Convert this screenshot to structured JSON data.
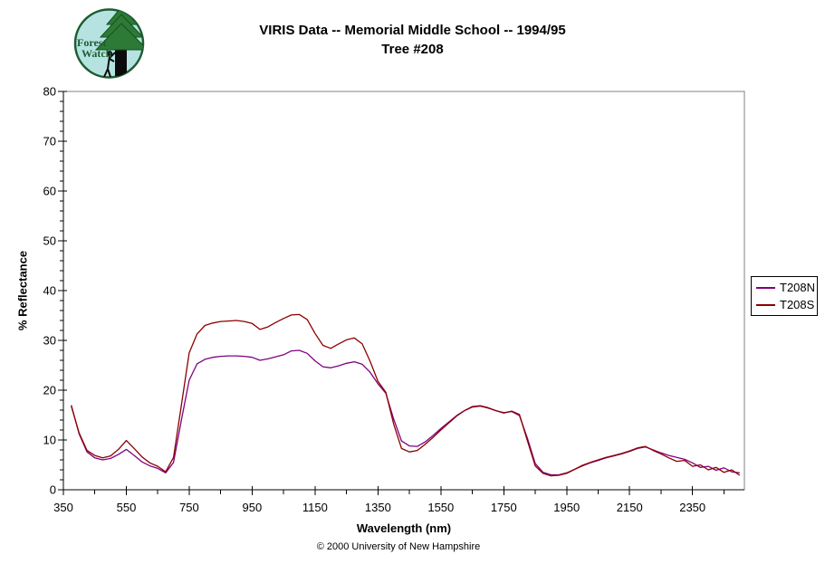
{
  "title": {
    "line1": "VIRIS Data -- Memorial Middle School -- 1994/95",
    "line2": "Tree #208"
  },
  "logo": {
    "line1": "Forest",
    "line2": "Watch"
  },
  "footer": {
    "copyright": "© 2000 University of New Hampshire"
  },
  "colors": {
    "series_n": "#800080",
    "series_s": "#8b0000",
    "plot_border": "#808080",
    "axis": "#000000",
    "logo_fill": "#b6e3e1",
    "logo_green": "#1d5c33"
  },
  "chart_data": {
    "type": "line",
    "title": "VIRIS Data -- Memorial Middle School -- 1994/95  Tree #208",
    "xlabel": "Wavelength (nm)",
    "ylabel": "% Reflectance",
    "xlim": [
      350,
      2515
    ],
    "ylim": [
      0,
      80
    ],
    "grid": false,
    "legend_position": "outside-right",
    "x_major_ticks": [
      350,
      550,
      750,
      950,
      1150,
      1350,
      1550,
      1750,
      1950,
      2150,
      2350
    ],
    "x_minor_step": 100,
    "y_major_ticks": [
      0,
      10,
      20,
      30,
      40,
      50,
      60,
      70,
      80
    ],
    "y_minor_step": 2,
    "x": [
      375,
      400,
      425,
      450,
      475,
      500,
      525,
      550,
      575,
      600,
      625,
      650,
      675,
      700,
      725,
      750,
      775,
      800,
      825,
      850,
      875,
      900,
      925,
      950,
      975,
      1000,
      1025,
      1050,
      1075,
      1100,
      1125,
      1150,
      1175,
      1200,
      1225,
      1250,
      1275,
      1300,
      1325,
      1350,
      1375,
      1400,
      1425,
      1450,
      1475,
      1500,
      1525,
      1550,
      1575,
      1600,
      1625,
      1650,
      1675,
      1700,
      1725,
      1750,
      1775,
      1800,
      1825,
      1850,
      1875,
      1900,
      1925,
      1950,
      1975,
      2000,
      2025,
      2050,
      2075,
      2100,
      2125,
      2150,
      2175,
      2200,
      2225,
      2250,
      2275,
      2300,
      2325,
      2350,
      2375,
      2400,
      2425,
      2450,
      2475,
      2500
    ],
    "series": [
      {
        "name": "T208N",
        "color": "#800080",
        "values": [
          17.0,
          11.2,
          7.6,
          6.4,
          6.0,
          6.3,
          7.1,
          8.1,
          6.9,
          5.6,
          4.8,
          4.3,
          3.4,
          5.5,
          14.0,
          22.0,
          25.3,
          26.2,
          26.6,
          26.8,
          26.9,
          26.9,
          26.8,
          26.6,
          26.0,
          26.3,
          26.7,
          27.1,
          27.9,
          28.0,
          27.4,
          25.9,
          24.7,
          24.5,
          24.9,
          25.4,
          25.7,
          25.2,
          23.6,
          21.3,
          19.4,
          14.2,
          9.8,
          8.8,
          8.7,
          9.6,
          10.9,
          12.3,
          13.6,
          14.9,
          15.9,
          16.6,
          16.8,
          16.4,
          15.9,
          15.5,
          15.7,
          14.9,
          10.4,
          5.3,
          3.5,
          3.0,
          3.0,
          3.4,
          4.1,
          4.8,
          5.4,
          5.9,
          6.4,
          6.8,
          7.2,
          7.7,
          8.3,
          8.6,
          8.0,
          7.4,
          6.9,
          6.5,
          6.1,
          5.4,
          4.5,
          4.7,
          3.9,
          4.4,
          3.6,
          3.4
        ]
      },
      {
        "name": "T208S",
        "color": "#8b0000",
        "values": [
          16.8,
          11.4,
          7.9,
          6.9,
          6.4,
          6.8,
          8.1,
          9.9,
          8.3,
          6.6,
          5.4,
          4.7,
          3.6,
          6.5,
          17.0,
          27.5,
          31.3,
          33.0,
          33.5,
          33.8,
          33.9,
          34.0,
          33.8,
          33.4,
          32.2,
          32.7,
          33.6,
          34.4,
          35.1,
          35.2,
          34.2,
          31.4,
          29.0,
          28.4,
          29.3,
          30.1,
          30.5,
          29.3,
          25.8,
          21.8,
          19.6,
          13.2,
          8.3,
          7.6,
          7.9,
          9.1,
          10.5,
          12.0,
          13.4,
          14.8,
          15.9,
          16.7,
          16.9,
          16.5,
          15.9,
          15.4,
          15.8,
          15.1,
          9.9,
          4.8,
          3.3,
          2.8,
          2.9,
          3.3,
          4.1,
          4.9,
          5.5,
          6.0,
          6.5,
          6.9,
          7.3,
          7.8,
          8.4,
          8.7,
          7.9,
          7.2,
          6.4,
          5.7,
          5.9,
          4.7,
          5.0,
          4.0,
          4.5,
          3.5,
          4.0,
          2.9
        ]
      }
    ]
  }
}
